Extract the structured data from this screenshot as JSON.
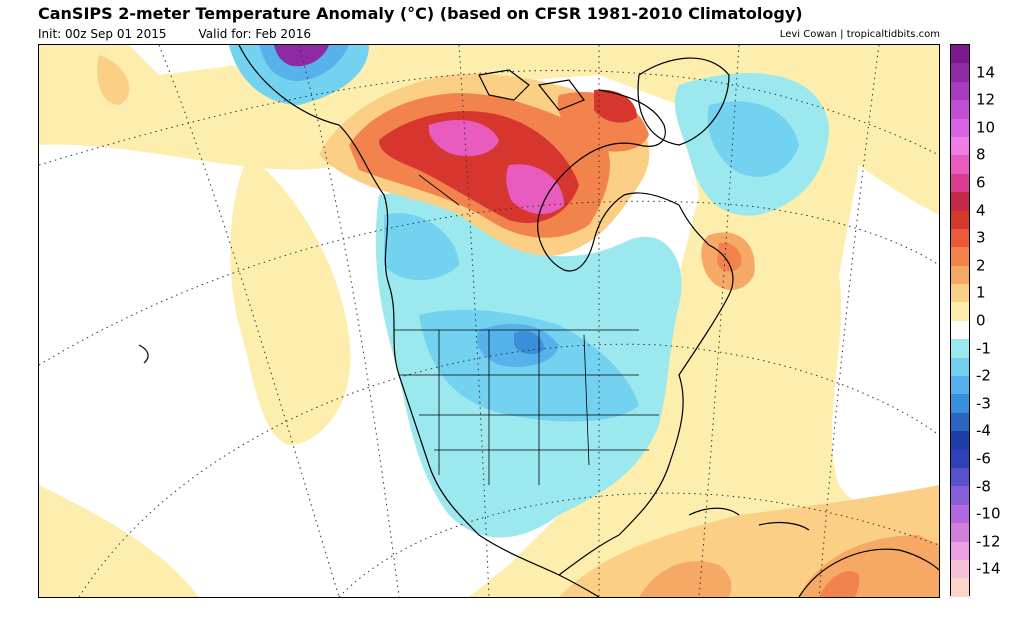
{
  "header": {
    "title": "CanSIPS 2-meter Temperature Anomaly (°C) (based on CFSR 1981-2010 Climatology)",
    "init": "Init: 00z Sep 01 2015",
    "valid": "Valid for: Feb 2016",
    "credit": "Levi Cowan | tropicaltidbits.com"
  },
  "colorbar": {
    "colors": [
      "#7a1a8c",
      "#8d2aa4",
      "#a63cbf",
      "#c04fd3",
      "#d863e0",
      "#ee7fe6",
      "#e85cc0",
      "#d93e8e",
      "#c42a46",
      "#d6362e",
      "#e85a3a",
      "#f2834d",
      "#f6a865",
      "#fbcf86",
      "#fdeeae",
      "#ffffff",
      "#9be9ef",
      "#72d2f0",
      "#56b2eb",
      "#3a8fdc",
      "#2a66c0",
      "#1e3fa6",
      "#3040b8",
      "#5a52cc",
      "#8a5ed8",
      "#b069e0",
      "#d27fdc",
      "#eba0e2",
      "#f6c0d6",
      "#fbd5c8"
    ],
    "labels": [
      "14",
      "12",
      "10",
      "8",
      "6",
      "4",
      "3",
      "2",
      "1",
      "0",
      "-1",
      "-2",
      "-3",
      "-4",
      "-6",
      "-8",
      "-10",
      "-12",
      "-14"
    ]
  },
  "map": {
    "region": "North America",
    "colors": {
      "land_outline": "#000000",
      "neutral": "#ffffff",
      "warm_light": "#fdeeae",
      "warm_mid": "#fbcf86",
      "warm_orange": "#f6a865",
      "warm_strong": "#f2834d",
      "hot": "#d6362e",
      "hot_dark": "#c42a46",
      "hot_pink": "#d93e8e",
      "pink": "#e85cc0",
      "cool_light": "#9be9ef",
      "cool_mid": "#72d2f0",
      "cool_blue": "#56b2eb",
      "cool_strong": "#3a8fdc",
      "cold": "#2a66c0",
      "violet": "#8d2aa4"
    }
  }
}
